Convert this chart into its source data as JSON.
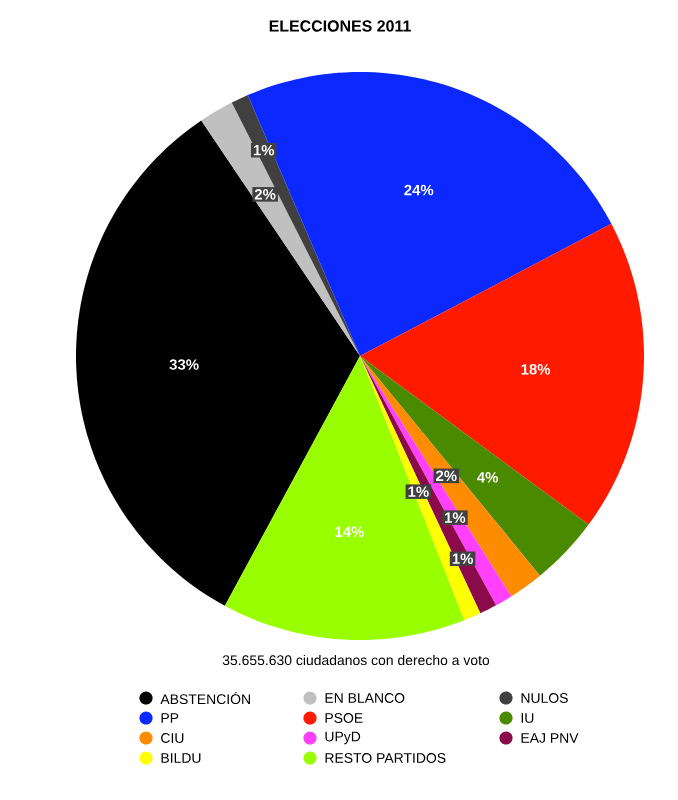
{
  "chart_data": {
    "type": "pie",
    "title": "ELECCIONES 2011",
    "categories": [
      "ABSTENCIÓN",
      "EN BLANCO",
      "NULOS",
      "PP",
      "PSOE",
      "IU",
      "CIU",
      "UPyD",
      "EAJ PNV",
      "BILDU",
      "RESTO PARTIDOS"
    ],
    "values": [
      33,
      2,
      1,
      24,
      18,
      4,
      2,
      1,
      1,
      1,
      14
    ],
    "value_labels": [
      "33%",
      "2%",
      "1%",
      "24%",
      "18%",
      "4%",
      "2%",
      "1%",
      "1%",
      "1%",
      "14%"
    ],
    "colors": [
      "#000000",
      "#c0c0c0",
      "#404040",
      "#0a28ff",
      "#ff1a00",
      "#4a8a00",
      "#ff8c00",
      "#ff40ff",
      "#8b0a4a",
      "#ffff00",
      "#99ff00"
    ],
    "annotations": [
      "35.655.630 ciudadanos con derecho a voto"
    ],
    "legend": "bottom"
  }
}
